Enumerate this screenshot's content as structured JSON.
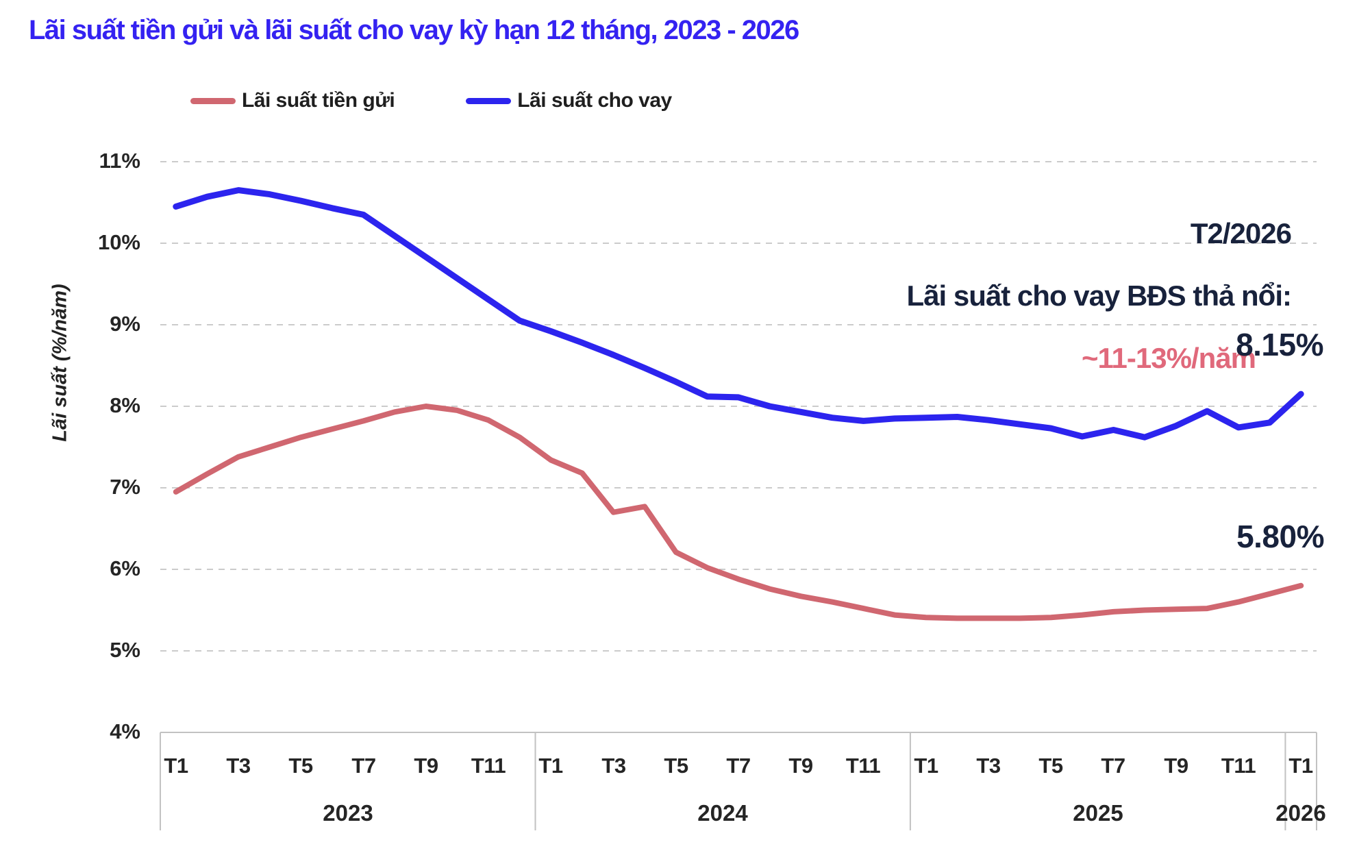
{
  "chart_data": {
    "type": "line",
    "title": "Lãi suất tiền gửi và lãi suất cho vay kỳ hạn 12 tháng, 2023 - 2026",
    "title_color": "#3422f1",
    "grid": "horizontal-dashed",
    "legend_position": "top-left",
    "y_axis": {
      "title": "Lãi suất (%/năm)",
      "min": 4,
      "max": 11,
      "ticks": [
        {
          "label": "11%",
          "value": 11
        },
        {
          "label": "10%",
          "value": 10
        },
        {
          "label": "9%",
          "value": 9
        },
        {
          "label": "8%",
          "value": 8
        },
        {
          "label": "7%",
          "value": 7
        },
        {
          "label": "6%",
          "value": 6
        },
        {
          "label": "5%",
          "value": 5
        },
        {
          "label": "4%",
          "value": 4
        }
      ]
    },
    "x_axis": {
      "years": [
        {
          "label": "2023",
          "months": 12,
          "ticks": [
            "T1",
            "T3",
            "T5",
            "T7",
            "T9",
            "T11"
          ]
        },
        {
          "label": "2024",
          "months": 12,
          "ticks": [
            "T1",
            "T3",
            "T5",
            "T7",
            "T9",
            "T11"
          ]
        },
        {
          "label": "2025",
          "months": 12,
          "ticks": [
            "T1",
            "T3",
            "T5",
            "T7",
            "T9",
            "T11"
          ]
        },
        {
          "label": "2026",
          "months": 1,
          "ticks": [
            "T1"
          ]
        }
      ]
    },
    "series": [
      {
        "name": "Lãi suất tiền gửi",
        "color": "#d06770",
        "values": [
          6.95,
          7.17,
          7.38,
          7.5,
          7.62,
          7.72,
          7.82,
          7.93,
          8.0,
          7.95,
          7.83,
          7.62,
          7.34,
          7.18,
          6.7,
          6.77,
          6.21,
          6.02,
          5.88,
          5.76,
          5.67,
          5.6,
          5.52,
          5.44,
          5.41,
          5.4,
          5.4,
          5.4,
          5.41,
          5.44,
          5.48,
          5.5,
          5.51,
          5.52,
          5.6,
          5.7,
          5.8
        ]
      },
      {
        "name": "Lãi suất cho vay",
        "color": "#2c24ee",
        "values": [
          10.45,
          10.57,
          10.65,
          10.6,
          10.52,
          10.43,
          10.35,
          10.09,
          9.83,
          9.57,
          9.31,
          9.05,
          8.92,
          8.78,
          8.63,
          8.47,
          8.3,
          8.12,
          8.11,
          8.0,
          7.93,
          7.86,
          7.82,
          7.85,
          7.86,
          7.87,
          7.83,
          7.78,
          7.73,
          7.63,
          7.71,
          7.62,
          7.76,
          7.94,
          7.74,
          7.8,
          8.15
        ]
      }
    ],
    "annotations": {
      "callout": {
        "title": "T2/2026",
        "subtitle": "Lãi suất cho vay BĐS thả nổi:",
        "highlight": "~11-13%/năm",
        "highlight_color": "#e0697b"
      },
      "end_labels": [
        {
          "series": "Lãi suất cho vay",
          "text": "8.15%"
        },
        {
          "series": "Lãi suất tiền gửi",
          "text": "5.80%"
        }
      ]
    }
  }
}
